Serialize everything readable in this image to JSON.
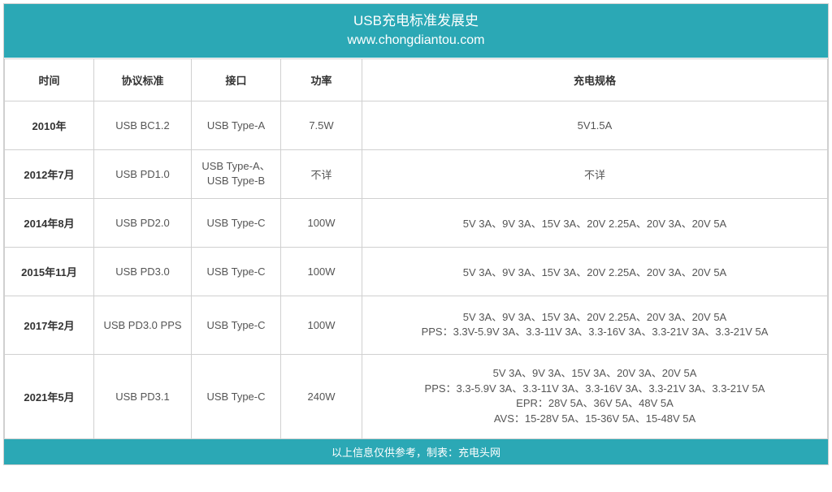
{
  "header": {
    "title": "USB充电标准发展史",
    "subtitle": "www.chongdiantou.com"
  },
  "columns": {
    "time": "时间",
    "protocol": "协议标准",
    "interface": "接口",
    "power": "功率",
    "spec": "充电规格"
  },
  "rows": [
    {
      "time": "2010年",
      "protocol": "USB BC1.2",
      "interface": "USB Type-A",
      "power": "7.5W",
      "spec": "5V1.5A"
    },
    {
      "time": "2012年7月",
      "protocol": "USB PD1.0",
      "interface": "USB Type-A、\nUSB Type-B",
      "power": "不详",
      "spec": "不详"
    },
    {
      "time": "2014年8月",
      "protocol": "USB PD2.0",
      "interface": "USB Type-C",
      "power": "100W",
      "spec": "5V 3A、9V 3A、15V 3A、20V 2.25A、20V 3A、20V 5A"
    },
    {
      "time": "2015年11月",
      "protocol": "USB PD3.0",
      "interface": "USB Type-C",
      "power": "100W",
      "spec": "5V 3A、9V 3A、15V 3A、20V 2.25A、20V 3A、20V 5A"
    },
    {
      "time": "2017年2月",
      "protocol": "USB PD3.0 PPS",
      "interface": "USB Type-C",
      "power": "100W",
      "spec": "5V 3A、9V 3A、15V 3A、20V 2.25A、20V 3A、20V 5A\nPPS：3.3V-5.9V 3A、3.3-11V 3A、3.3-16V 3A、3.3-21V 3A、3.3-21V 5A"
    },
    {
      "time": "2021年5月",
      "protocol": "USB PD3.1",
      "interface": "USB Type-C",
      "power": "240W",
      "spec": "5V 3A、9V 3A、15V 3A、20V 3A、20V 5A\nPPS：3.3-5.9V 3A、3.3-11V 3A、3.3-16V 3A、3.3-21V 3A、3.3-21V 5A\nEPR：28V 5A、36V 5A、48V 5A\nAVS：15-28V 5A、15-36V 5A、15-48V 5A"
    }
  ],
  "footer": "以上信息仅供参考，制表：充电头网",
  "style": {
    "header_bg": "#2ba8b5",
    "header_fg": "#ffffff",
    "border_color": "#d0d0d0",
    "cell_text_color": "#555555",
    "bold_text_color": "#333333",
    "title_fontsize": 17,
    "body_fontsize": 13
  }
}
